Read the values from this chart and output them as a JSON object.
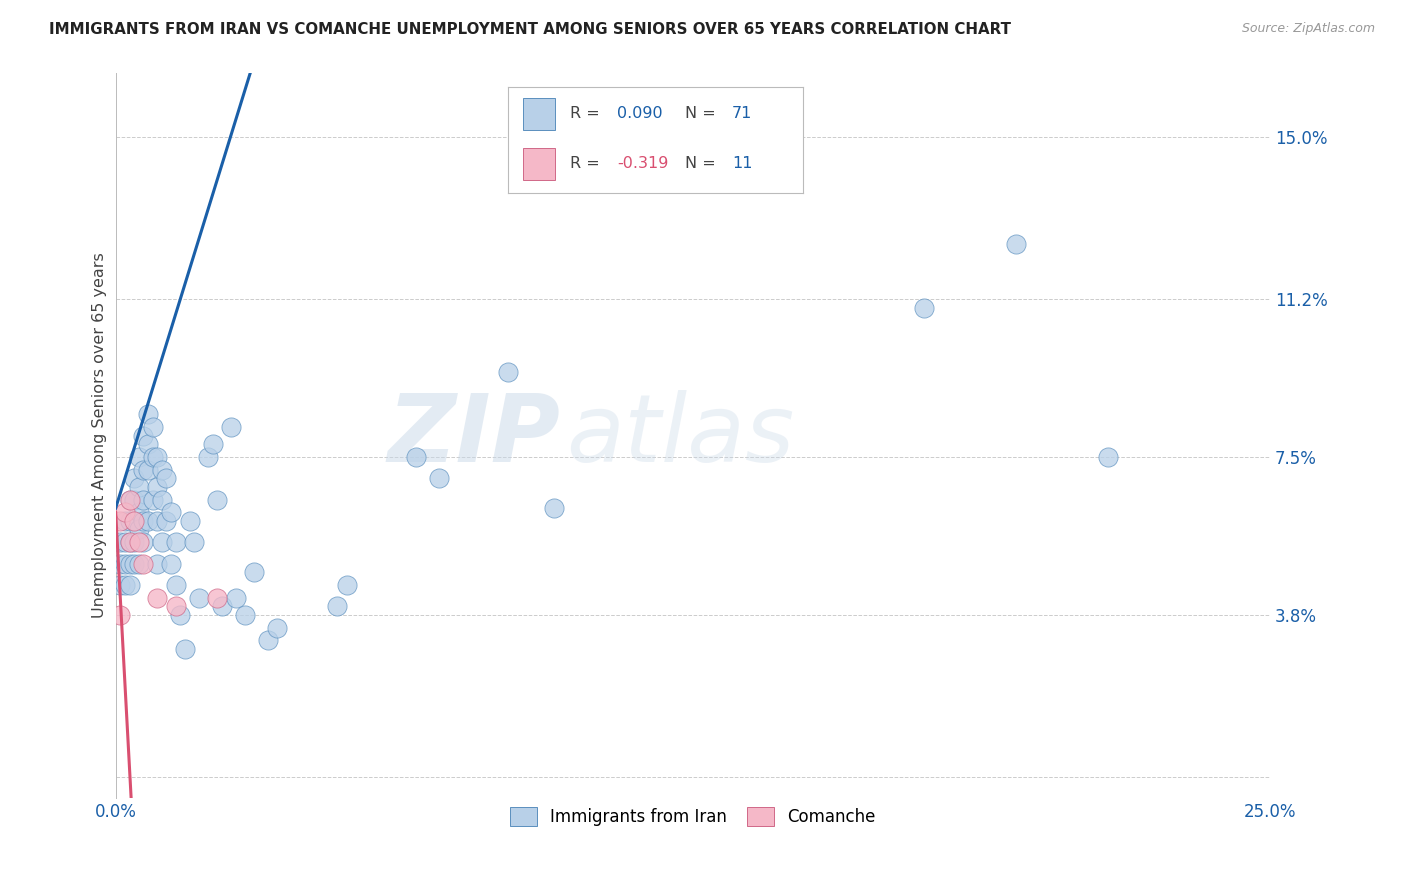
{
  "title": "IMMIGRANTS FROM IRAN VS COMANCHE UNEMPLOYMENT AMONG SENIORS OVER 65 YEARS CORRELATION CHART",
  "source": "Source: ZipAtlas.com",
  "ylabel": "Unemployment Among Seniors over 65 years",
  "ytick_vals": [
    0.0,
    0.038,
    0.075,
    0.112,
    0.15
  ],
  "ytick_labels": [
    "",
    "3.8%",
    "7.5%",
    "11.2%",
    "15.0%"
  ],
  "xtick_vals": [
    0.0,
    0.25
  ],
  "xtick_labels": [
    "0.0%",
    "25.0%"
  ],
  "xlim": [
    0.0,
    0.25
  ],
  "ylim": [
    -0.005,
    0.165
  ],
  "R_iran": "0.090",
  "N_iran": "71",
  "R_comanche": "-0.319",
  "N_comanche": "11",
  "color_iran_fill": "#b8d0e8",
  "color_iran_edge": "#5a8fbe",
  "color_comanche_fill": "#f5b8c8",
  "color_comanche_edge": "#d06888",
  "color_line_iran": "#1a5fa8",
  "color_line_comanche": "#d94f70",
  "watermark_zip": "ZIP",
  "watermark_atlas": "atlas",
  "legend_label_iran": "Immigrants from Iran",
  "legend_label_comanche": "Comanche",
  "iran_x": [
    0.001,
    0.001,
    0.001,
    0.002,
    0.002,
    0.002,
    0.002,
    0.003,
    0.003,
    0.003,
    0.003,
    0.003,
    0.004,
    0.004,
    0.004,
    0.004,
    0.004,
    0.005,
    0.005,
    0.005,
    0.005,
    0.005,
    0.006,
    0.006,
    0.006,
    0.006,
    0.006,
    0.007,
    0.007,
    0.007,
    0.007,
    0.008,
    0.008,
    0.008,
    0.009,
    0.009,
    0.009,
    0.009,
    0.01,
    0.01,
    0.01,
    0.011,
    0.011,
    0.012,
    0.012,
    0.013,
    0.013,
    0.014,
    0.015,
    0.016,
    0.017,
    0.018,
    0.02,
    0.021,
    0.022,
    0.023,
    0.025,
    0.026,
    0.028,
    0.03,
    0.033,
    0.035,
    0.048,
    0.05,
    0.065,
    0.07,
    0.085,
    0.095,
    0.175,
    0.195,
    0.215
  ],
  "iran_y": [
    0.055,
    0.05,
    0.045,
    0.06,
    0.055,
    0.05,
    0.045,
    0.065,
    0.06,
    0.055,
    0.05,
    0.045,
    0.07,
    0.065,
    0.06,
    0.055,
    0.05,
    0.075,
    0.068,
    0.062,
    0.058,
    0.05,
    0.08,
    0.072,
    0.065,
    0.06,
    0.055,
    0.085,
    0.078,
    0.072,
    0.06,
    0.082,
    0.075,
    0.065,
    0.075,
    0.068,
    0.06,
    0.05,
    0.072,
    0.065,
    0.055,
    0.07,
    0.06,
    0.062,
    0.05,
    0.055,
    0.045,
    0.038,
    0.03,
    0.06,
    0.055,
    0.042,
    0.075,
    0.078,
    0.065,
    0.04,
    0.082,
    0.042,
    0.038,
    0.048,
    0.032,
    0.035,
    0.04,
    0.045,
    0.075,
    0.07,
    0.095,
    0.063,
    0.11,
    0.125,
    0.075
  ],
  "comanche_x": [
    0.001,
    0.001,
    0.002,
    0.003,
    0.003,
    0.004,
    0.005,
    0.006,
    0.009,
    0.013,
    0.022
  ],
  "comanche_y": [
    0.06,
    0.038,
    0.062,
    0.065,
    0.055,
    0.06,
    0.055,
    0.05,
    0.042,
    0.04,
    0.042
  ]
}
